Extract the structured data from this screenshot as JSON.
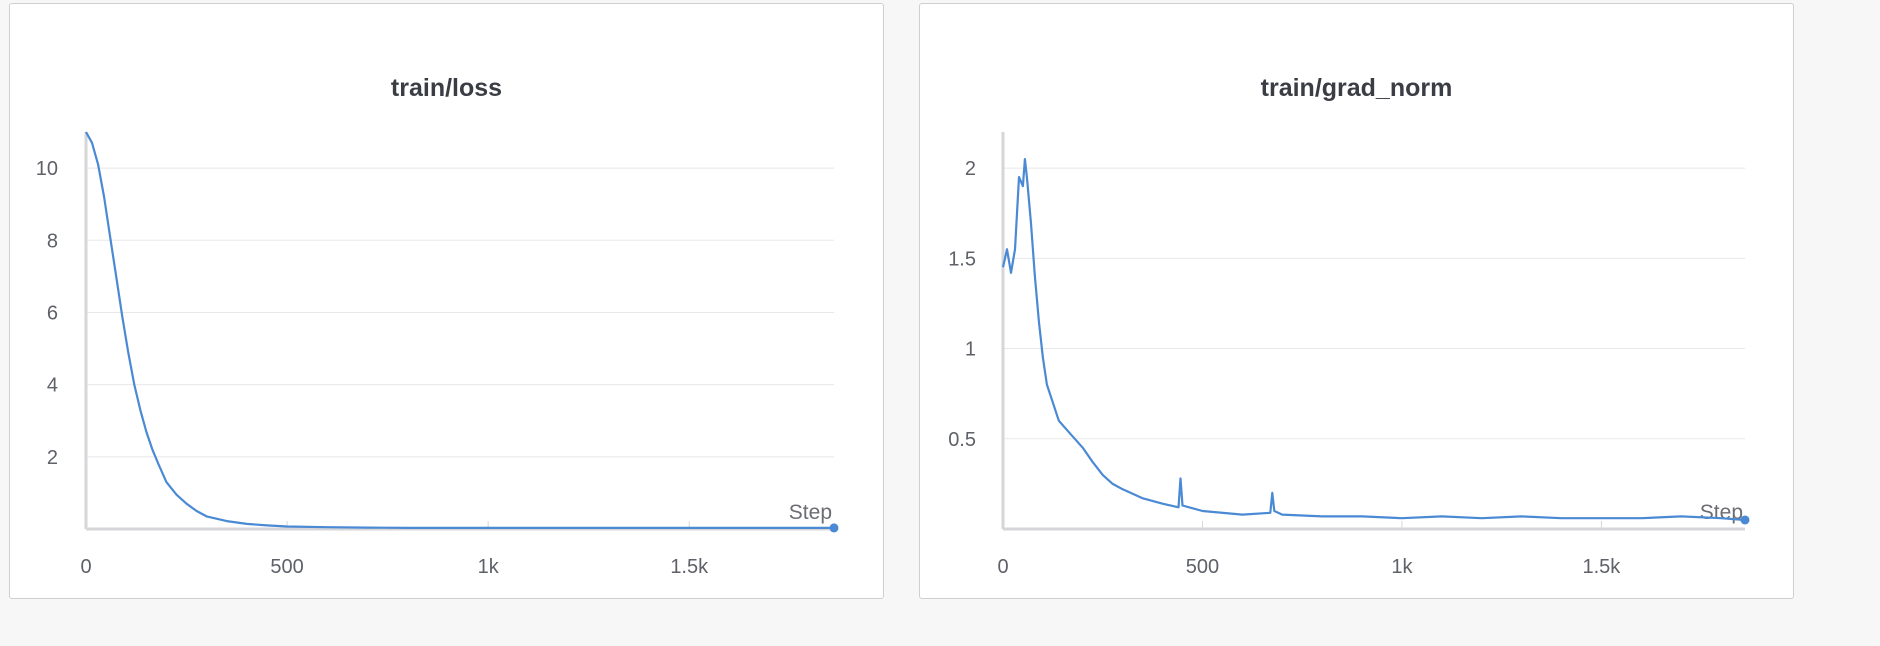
{
  "colors": {
    "series": "#4a89d4",
    "grid": "#e8e8eb",
    "axis": "#d6d6d9",
    "text": "#5f6168"
  },
  "chart_data": [
    {
      "type": "line",
      "title": "train/loss",
      "xlabel": "Step",
      "ylabel": "",
      "xlim": [
        0,
        1860
      ],
      "ylim": [
        0,
        11
      ],
      "xticks": [
        0,
        500,
        1000,
        1500
      ],
      "xtick_labels": [
        "0",
        "500",
        "1k",
        "1.5k"
      ],
      "yticks": [
        2,
        4,
        6,
        8,
        10
      ],
      "ytick_labels": [
        "2",
        "4",
        "6",
        "8",
        "10"
      ],
      "grid": true,
      "series": [
        {
          "x": [
            0,
            15,
            30,
            45,
            60,
            75,
            90,
            105,
            120,
            135,
            150,
            165,
            180,
            200,
            225,
            250,
            275,
            300,
            350,
            400,
            450,
            500,
            600,
            700,
            800,
            900,
            1000,
            1100,
            1200,
            1300,
            1400,
            1500,
            1600,
            1700,
            1800,
            1860
          ],
          "y": [
            11.0,
            10.7,
            10.1,
            9.2,
            8.1,
            7.0,
            5.9,
            4.9,
            4.0,
            3.3,
            2.7,
            2.2,
            1.8,
            1.3,
            0.95,
            0.7,
            0.5,
            0.35,
            0.22,
            0.14,
            0.1,
            0.07,
            0.05,
            0.04,
            0.03,
            0.03,
            0.03,
            0.03,
            0.03,
            0.03,
            0.03,
            0.03,
            0.03,
            0.03,
            0.03,
            0.03
          ]
        }
      ]
    },
    {
      "type": "line",
      "title": "train/grad_norm",
      "xlabel": "Step",
      "ylabel": "",
      "xlim": [
        0,
        1860
      ],
      "ylim": [
        0,
        2.2
      ],
      "xticks": [
        0,
        500,
        1000,
        1500
      ],
      "xtick_labels": [
        "0",
        "500",
        "1k",
        "1.5k"
      ],
      "yticks": [
        0.5,
        1,
        1.5,
        2
      ],
      "ytick_labels": [
        "0.5",
        "1",
        "1.5",
        "2"
      ],
      "grid": true,
      "series": [
        {
          "x": [
            0,
            10,
            20,
            30,
            40,
            50,
            55,
            60,
            70,
            80,
            90,
            100,
            110,
            125,
            140,
            160,
            180,
            200,
            225,
            250,
            275,
            300,
            350,
            400,
            440,
            445,
            450,
            500,
            600,
            670,
            675,
            680,
            700,
            800,
            900,
            1000,
            1100,
            1200,
            1300,
            1400,
            1500,
            1600,
            1700,
            1800,
            1860
          ],
          "y": [
            1.45,
            1.55,
            1.42,
            1.55,
            1.95,
            1.9,
            2.05,
            1.95,
            1.7,
            1.4,
            1.15,
            0.95,
            0.8,
            0.7,
            0.6,
            0.55,
            0.5,
            0.45,
            0.37,
            0.3,
            0.25,
            0.22,
            0.17,
            0.14,
            0.12,
            0.28,
            0.13,
            0.1,
            0.08,
            0.09,
            0.2,
            0.1,
            0.08,
            0.07,
            0.07,
            0.06,
            0.07,
            0.06,
            0.07,
            0.06,
            0.06,
            0.06,
            0.07,
            0.06,
            0.05
          ]
        }
      ]
    }
  ]
}
